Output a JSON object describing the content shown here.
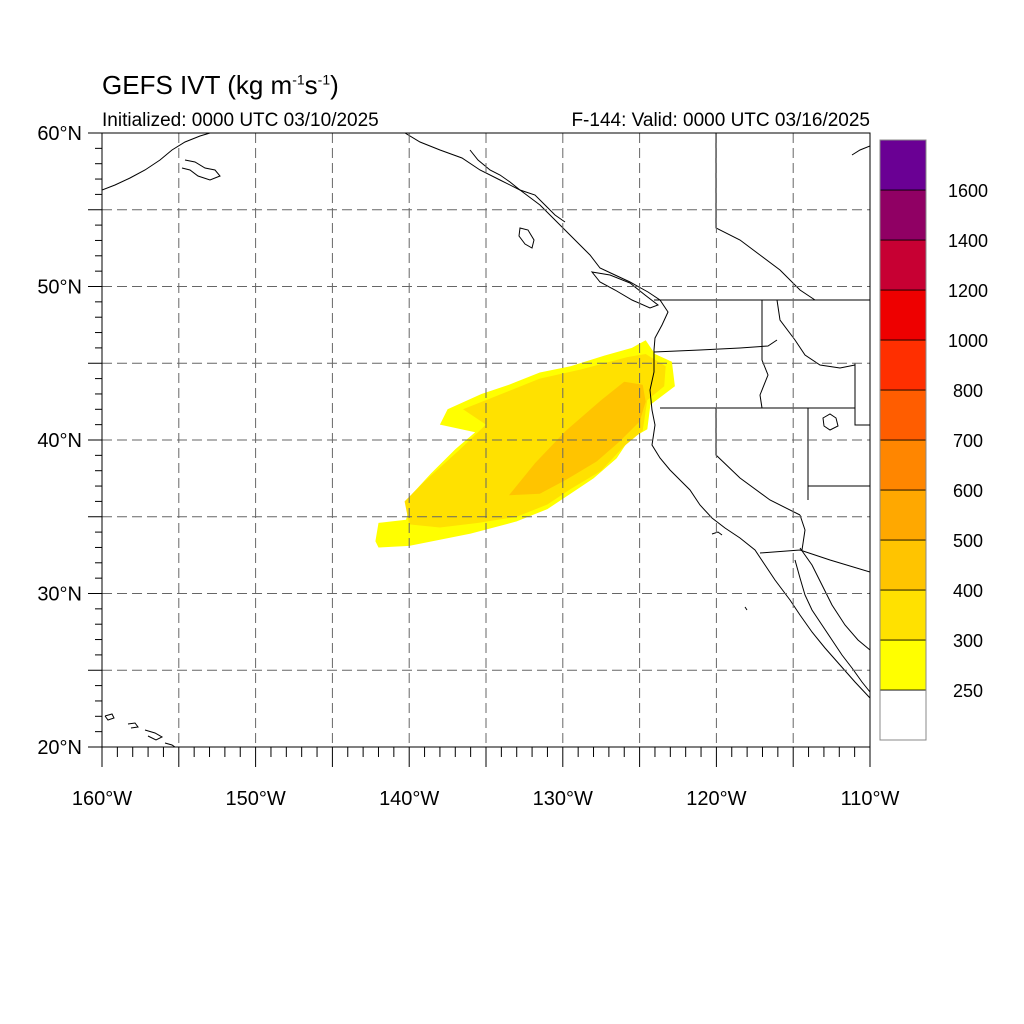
{
  "header": {
    "title_prefix": "GEFS IVT (kg m",
    "title_exp1": "-1",
    "title_mid": "s",
    "title_exp2": "-1",
    "title_suffix": ")",
    "initialized": "Initialized: 0000 UTC 03/10/2025",
    "valid": "F-144: Valid: 0000 UTC 03/16/2025"
  },
  "map": {
    "lon_range": [
      -160,
      -110
    ],
    "lat_range": [
      20,
      60
    ],
    "lat_labels": [
      "20°N",
      "30°N",
      "40°N",
      "50°N",
      "60°N"
    ],
    "lon_labels": [
      "160°W",
      "150°W",
      "140°W",
      "130°W",
      "120°W",
      "110°W"
    ],
    "gridlines": "dashed every 5°",
    "ivt_plume": {
      "outer_yellow_250_300": [
        [
          -142.2,
          33.4
        ],
        [
          -142.0,
          34.6
        ],
        [
          -140.2,
          34.8
        ],
        [
          -139.8,
          36.5
        ],
        [
          -138.6,
          37.8
        ],
        [
          -137.0,
          39.4
        ],
        [
          -135.7,
          40.5
        ],
        [
          -138.0,
          41.0
        ],
        [
          -137.5,
          42.0
        ],
        [
          -135.3,
          43.0
        ],
        [
          -133.5,
          43.6
        ],
        [
          -131.5,
          44.4
        ],
        [
          -129.5,
          44.8
        ],
        [
          -127.3,
          45.5
        ],
        [
          -125.5,
          46.0
        ],
        [
          -124.6,
          46.5
        ],
        [
          -124.0,
          45.6
        ],
        [
          -122.9,
          45.1
        ],
        [
          -122.7,
          43.5
        ],
        [
          -124.3,
          42.3
        ],
        [
          -124.5,
          40.7
        ],
        [
          -125.7,
          40.0
        ],
        [
          -126.5,
          38.8
        ],
        [
          -128.0,
          37.5
        ],
        [
          -129.5,
          36.5
        ],
        [
          -131.0,
          35.5
        ],
        [
          -133.0,
          34.7
        ],
        [
          -136.0,
          33.9
        ],
        [
          -138.0,
          33.5
        ],
        [
          -140.0,
          33.1
        ],
        [
          -142.0,
          33.0
        ]
      ],
      "band_300_400": [
        [
          -140.0,
          34.5
        ],
        [
          -140.3,
          36.0
        ],
        [
          -139.0,
          37.3
        ],
        [
          -136.8,
          39.3
        ],
        [
          -135.0,
          41.0
        ],
        [
          -136.5,
          42.0
        ],
        [
          -134.0,
          43.0
        ],
        [
          -131.5,
          44.0
        ],
        [
          -128.8,
          44.6
        ],
        [
          -125.8,
          45.4
        ],
        [
          -124.6,
          45.6
        ],
        [
          -123.3,
          44.8
        ],
        [
          -123.4,
          43.5
        ],
        [
          -124.5,
          42.6
        ],
        [
          -124.8,
          40.6
        ],
        [
          -126.0,
          39.6
        ],
        [
          -127.5,
          38.0
        ],
        [
          -129.5,
          36.8
        ],
        [
          -131.0,
          35.8
        ],
        [
          -133.0,
          35.0
        ],
        [
          -135.5,
          34.6
        ],
        [
          -138.0,
          34.3
        ]
      ],
      "band_400_500": [
        [
          -133.5,
          36.4
        ],
        [
          -131.8,
          38.5
        ],
        [
          -129.8,
          40.6
        ],
        [
          -127.5,
          42.6
        ],
        [
          -126.0,
          43.8
        ],
        [
          -124.8,
          43.6
        ],
        [
          -124.6,
          42.5
        ],
        [
          -125.0,
          41.2
        ],
        [
          -126.3,
          39.9
        ],
        [
          -127.8,
          38.6
        ],
        [
          -129.8,
          37.4
        ],
        [
          -131.5,
          36.5
        ]
      ]
    }
  },
  "colorbar": {
    "levels": [
      "250",
      "300",
      "400",
      "500",
      "600",
      "700",
      "800",
      "1000",
      "1200",
      "1400",
      "1600"
    ],
    "colors": [
      "#ffffff",
      "#ffff00",
      "#ffe100",
      "#ffc400",
      "#ffa800",
      "#ff8600",
      "#ff5d00",
      "#ff2f00",
      "#ee0000",
      "#c70033",
      "#900064",
      "#6a0094"
    ]
  }
}
